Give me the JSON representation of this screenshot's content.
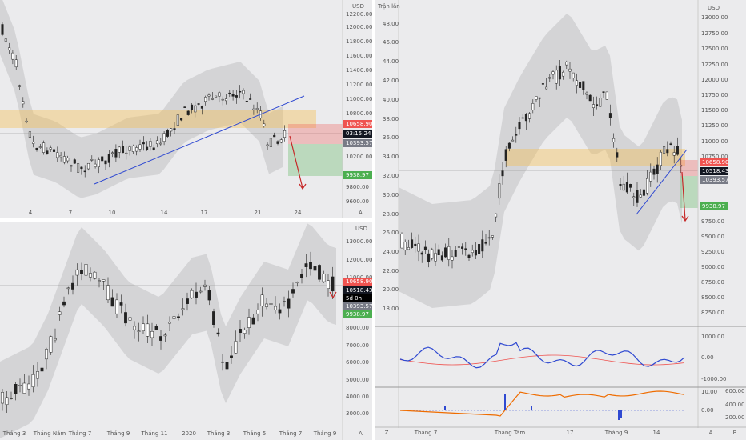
{
  "top_left": {
    "currency": "USD",
    "price_labels": [
      "12200.00",
      "12000.00",
      "11800.00",
      "11600.00",
      "11400.00",
      "11200.00",
      "11000.00",
      "10800.00",
      "10200.00",
      "9800.00",
      "9600.00"
    ],
    "tags": [
      {
        "label": "10658.90",
        "color": "#ef5350"
      },
      {
        "label": "03:15:24",
        "color": "#131722"
      },
      {
        "label": "10393.57",
        "color": "#787b86"
      },
      {
        "label": "9938.97",
        "color": "#4caf50"
      }
    ],
    "time_labels": [
      "4",
      "7",
      "10",
      "14",
      "17",
      "21",
      "24"
    ],
    "scale_mode": "A"
  },
  "bottom_left": {
    "currency": "USD",
    "price_labels": [
      "13000.00",
      "12000.00",
      "11000.00",
      "9000.00",
      "8000.00",
      "7000.00",
      "6000.00",
      "5000.00",
      "4000.00",
      "3000.00"
    ],
    "tags": [
      {
        "label": "10658.90",
        "color": "#ef5350"
      },
      {
        "label": "10518.43",
        "color": "#131722"
      },
      {
        "label": "5d 0h",
        "color": "#000000"
      },
      {
        "label": "10393.57",
        "color": "#787b86"
      },
      {
        "label": "9938.97",
        "color": "#4caf50"
      }
    ],
    "time_labels": [
      "Tháng 3",
      "Tháng Năm",
      "Tháng 7",
      "Tháng 9",
      "Tháng 11",
      "2020",
      "Tháng 3",
      "Tháng 5",
      "Tháng 7",
      "Tháng 9"
    ],
    "scale_mode": "A"
  },
  "right": {
    "currency": "USD",
    "volume_title": "Trận lần",
    "left_labels": [
      "48.00",
      "46.00",
      "44.00",
      "42.00",
      "40.00",
      "38.00",
      "36.00",
      "34.00",
      "32.00",
      "30.00",
      "28.00",
      "26.00",
      "24.00",
      "22.00",
      "20.00",
      "18.00"
    ],
    "price_labels": [
      "13000.00",
      "12750.00",
      "12500.00",
      "12250.00",
      "12000.00",
      "11750.00",
      "11500.00",
      "11250.00",
      "11000.00",
      "10750.00",
      "9750.00",
      "9500.00",
      "9250.00",
      "9000.00",
      "8750.00",
      "8500.00",
      "8250.00"
    ],
    "tags": [
      {
        "label": "10658.90",
        "color": "#ef5350"
      },
      {
        "label": "10518.43",
        "color": "#131722"
      },
      {
        "label": "10393.57",
        "color": "#787b86"
      },
      {
        "label": "9938.97",
        "color": "#4caf50"
      }
    ],
    "osc_labels": [
      "1000.00",
      "0.00",
      "-1000.00"
    ],
    "sub2_labels": [
      "10.00",
      "0.00"
    ],
    "sub2_right_labels": [
      "600.00",
      "400.00",
      "200.00"
    ],
    "time_labels": [
      "Z",
      "Tháng 7",
      "Tháng Tám",
      "17",
      "Tháng 9",
      "14",
      "A",
      "B"
    ]
  }
}
